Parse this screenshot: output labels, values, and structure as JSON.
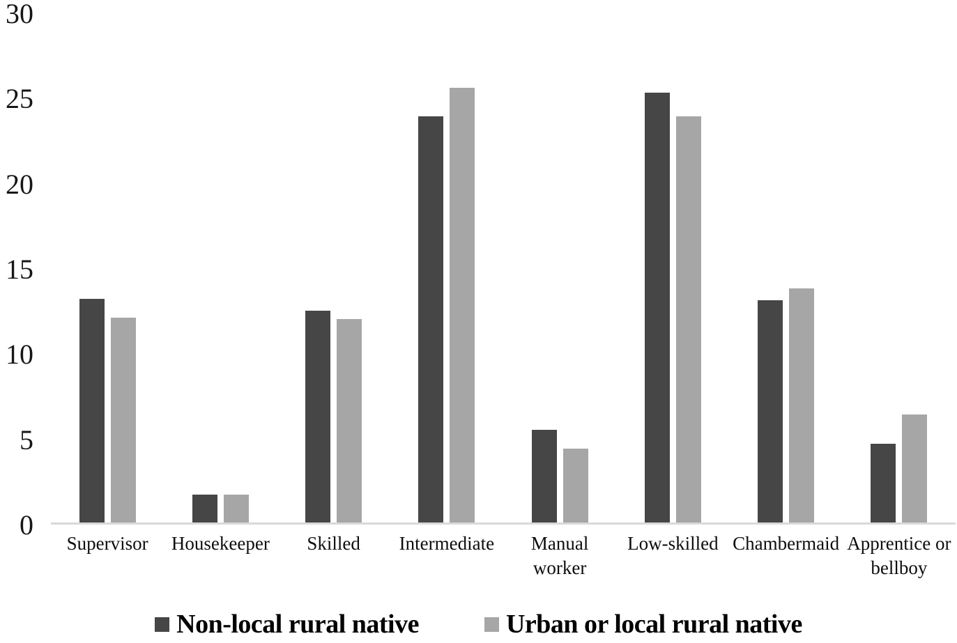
{
  "chart_data": {
    "type": "bar",
    "title": "",
    "xlabel": "",
    "ylabel": "",
    "categories": [
      "Supervisor",
      "Housekeeper",
      "Skilled",
      "Intermediate",
      "Manual\nworker",
      "Low-skilled",
      "Chambermaid",
      "Apprentice or\nbellboy"
    ],
    "series": [
      {
        "name": "Non-local rural native",
        "color": "#464646",
        "values": [
          13.2,
          1.7,
          12.5,
          23.9,
          5.5,
          25.3,
          13.1,
          4.7
        ]
      },
      {
        "name": "Urban or local rural native",
        "color": "#a6a6a6",
        "values": [
          12.1,
          1.7,
          12.0,
          25.6,
          4.4,
          23.9,
          13.8,
          6.4
        ]
      }
    ],
    "ylim": [
      0,
      30
    ],
    "yticks": [
      0,
      5,
      10,
      15,
      20,
      25,
      30
    ],
    "grid": false,
    "legend_position": "bottom",
    "axis_line_color": "#d9d9d9",
    "background_color": "#ffffff",
    "text_color": "#000000"
  }
}
